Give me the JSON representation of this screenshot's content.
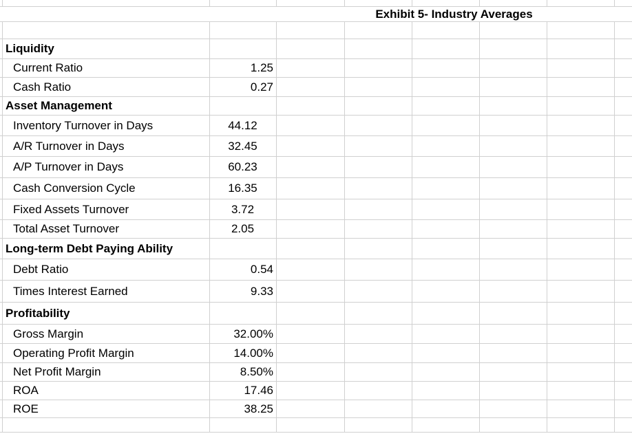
{
  "sheet": {
    "title": "Exhibit 5- Industry Averages",
    "colors": {
      "gridline": "#d0d0d0",
      "text": "#000000",
      "background": "#ffffff"
    },
    "rows": [
      {
        "type": "partial-empty"
      },
      {
        "type": "title"
      },
      {
        "type": "empty"
      },
      {
        "type": "section",
        "label": "Liquidity"
      },
      {
        "type": "item",
        "label": "Current Ratio",
        "value": "1.25",
        "value_align": "right"
      },
      {
        "type": "item",
        "label": "Cash Ratio",
        "value": "0.27",
        "value_align": "right"
      },
      {
        "type": "section",
        "label": "Asset Management"
      },
      {
        "type": "item",
        "label": "Inventory Turnover in Days",
        "value": "44.12",
        "value_align": "center"
      },
      {
        "type": "item",
        "label": "A/R Turnover in Days",
        "value": "32.45",
        "value_align": "center"
      },
      {
        "type": "item",
        "label": "A/P Turnover in Days",
        "value": "60.23",
        "value_align": "center"
      },
      {
        "type": "item",
        "label": "Cash Conversion Cycle",
        "value": "16.35",
        "value_align": "center"
      },
      {
        "type": "item",
        "label": "Fixed Assets Turnover",
        "value": "3.72",
        "value_align": "center"
      },
      {
        "type": "item",
        "label": "Total Asset Turnover",
        "value": "2.05",
        "value_align": "center"
      },
      {
        "type": "section",
        "label": "Long-term Debt Paying Ability"
      },
      {
        "type": "item",
        "label": "Debt Ratio",
        "value": "0.54",
        "value_align": "right"
      },
      {
        "type": "item",
        "label": "Times Interest Earned",
        "value": "9.33",
        "value_align": "right"
      },
      {
        "type": "section",
        "label": "Profitability"
      },
      {
        "type": "item",
        "label": "Gross Margin",
        "value": "32.00%",
        "value_align": "right"
      },
      {
        "type": "item",
        "label": "Operating Profit Margin",
        "value": "14.00%",
        "value_align": "right"
      },
      {
        "type": "item",
        "label": "Net Profit Margin",
        "value": "8.50%",
        "value_align": "right"
      },
      {
        "type": "item",
        "label": "ROA",
        "value": "17.46",
        "value_align": "right"
      },
      {
        "type": "item",
        "label": "ROE",
        "value": "38.25",
        "value_align": "right"
      },
      {
        "type": "empty"
      },
      {
        "type": "partial-empty"
      }
    ]
  }
}
